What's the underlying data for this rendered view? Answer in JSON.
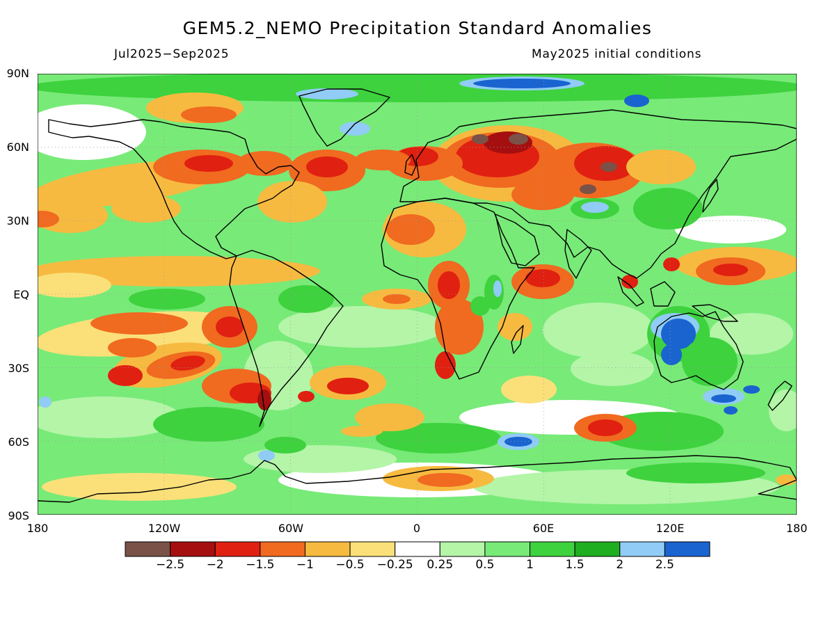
{
  "title": "GEM5.2_NEMO Precipitation Standard Anomalies",
  "subtitle_left": "Jul2025−Sep2025",
  "subtitle_right": "May2025 initial conditions",
  "lat_labels": [
    "90N",
    "60N",
    "30N",
    "EQ",
    "30S",
    "60S",
    "90S"
  ],
  "lon_labels": [
    "180",
    "120W",
    "60W",
    "0",
    "60E",
    "120E",
    "180"
  ],
  "colorbar": {
    "colors": [
      "#7a5248",
      "#a50f0f",
      "#e02010",
      "#f06a20",
      "#f7ba40",
      "#fbe07a",
      "#ffffff",
      "#b4f5a8",
      "#78ea78",
      "#3ed23e",
      "#1fae1f",
      "#90ccf5",
      "#1a64d0"
    ],
    "labels": [
      "−2.5",
      "−2",
      "−1.5",
      "−1",
      "−0.5",
      "−0.25",
      "0.25",
      "0.5",
      "1",
      "1.5",
      "2",
      "2.5"
    ]
  },
  "map_colors": {
    "ocean_base": "#78ea78",
    "dry_light": "#fbe07a",
    "dry_moderate": "#f7ba40",
    "dry_strong": "#f06a20",
    "dry_severe": "#e02010",
    "dry_extreme": "#a50f0f",
    "dry_max": "#7a5248",
    "wet_light": "#b4f5a8",
    "wet_strong": "#3ed23e",
    "wet_severe": "#1fae1f",
    "wet_extreme": "#90ccf5",
    "wet_max": "#1a64d0",
    "neutral": "#ffffff",
    "coastline": "#000000",
    "gridline": "#9a9a9a"
  }
}
